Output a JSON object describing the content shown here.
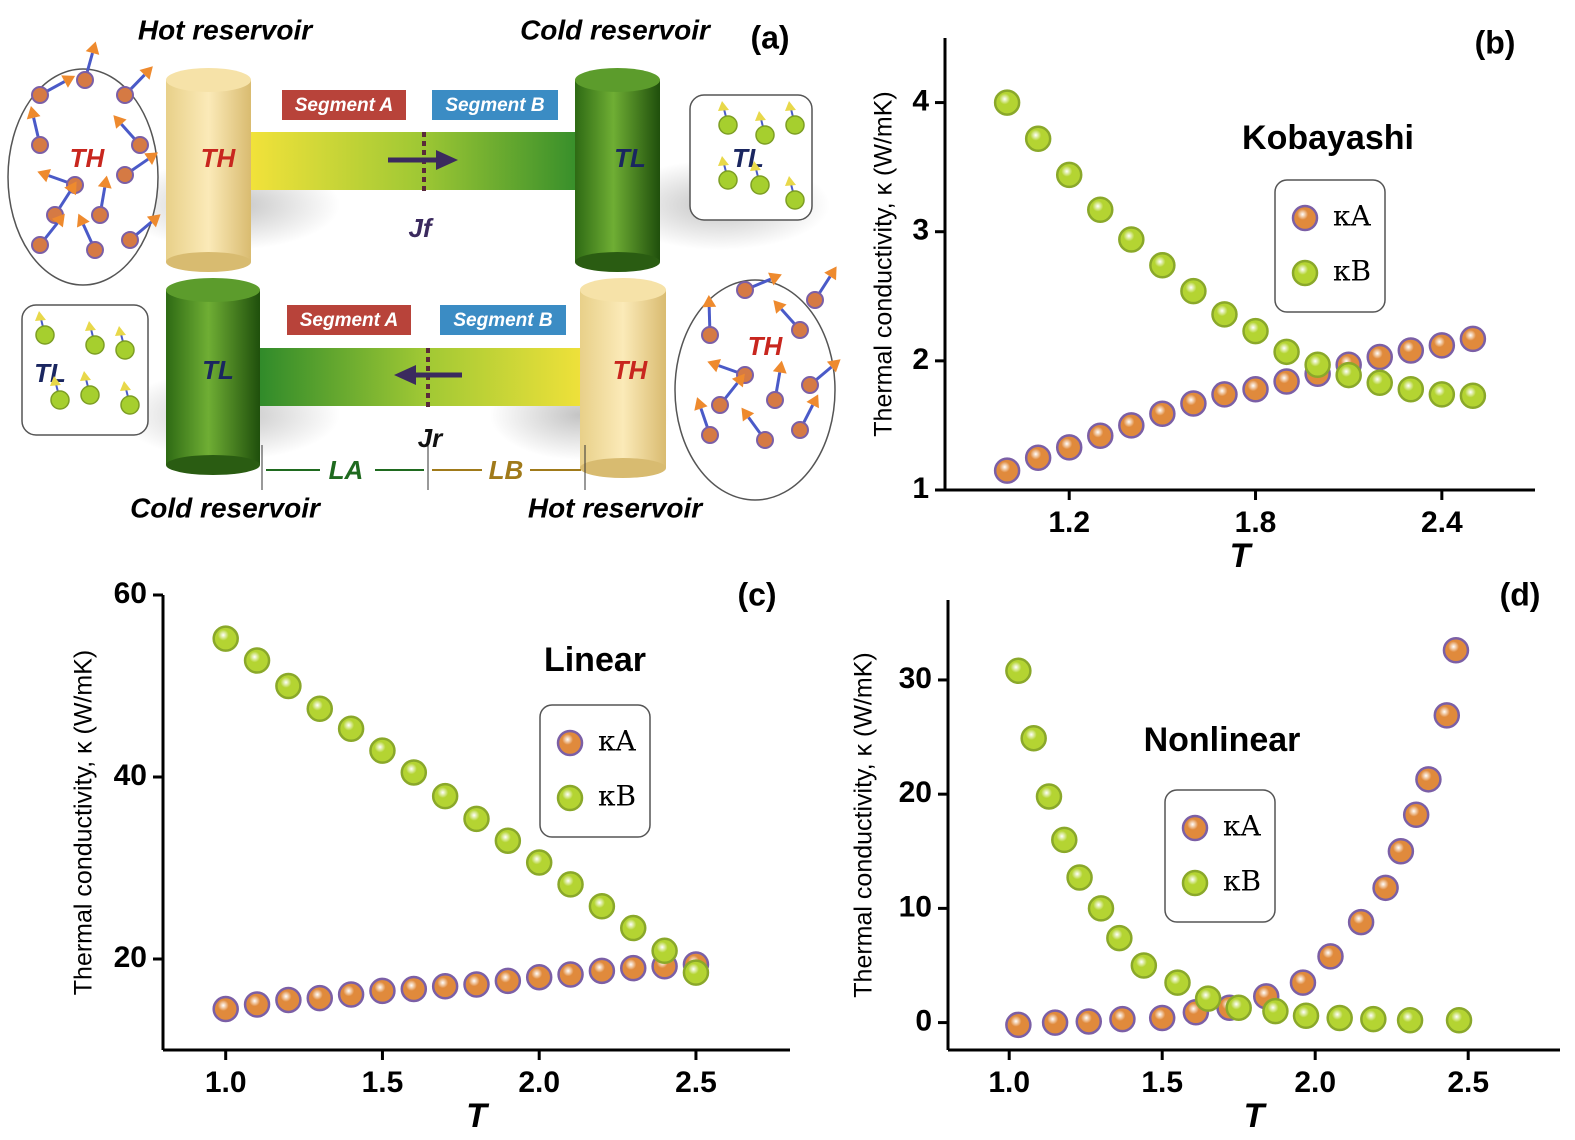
{
  "diagram": {
    "panel_label": "(a)",
    "top": {
      "left_reservoir": "Hot reservoir",
      "right_reservoir": "Cold reservoir",
      "segment_a": "Segment A",
      "segment_b": "Segment B",
      "left_gas_temp": "TH",
      "left_temp": "TH",
      "right_temp": "TL",
      "right_gas_temp": "TL",
      "flux": "Jf"
    },
    "bottom": {
      "left_reservoir": "Cold reservoir",
      "right_reservoir": "Hot reservoir",
      "segment_a": "Segment A",
      "segment_b": "Segment B",
      "left_gas_temp": "TL",
      "left_temp": "TL",
      "right_temp": "TH",
      "right_gas_temp": "TH",
      "flux": "Jr",
      "length_a": "LA",
      "length_b": "LB"
    }
  },
  "chart_data": [
    {
      "type": "scatter",
      "panel_label": "(b)",
      "annotation": "Kobayashi",
      "x_label": "T",
      "y_label": "Thermal conductivity, κ (W/mK)",
      "x": [
        1.0,
        1.1,
        1.2,
        1.3,
        1.4,
        1.5,
        1.6,
        1.7,
        1.8,
        1.9,
        2.0,
        2.1,
        2.2,
        2.3,
        2.4,
        2.5
      ],
      "series": [
        {
          "name": "κA",
          "color": "#e08a3c",
          "edgecolor": "#7b5fa6",
          "values": [
            1.15,
            1.25,
            1.33,
            1.42,
            1.5,
            1.59,
            1.67,
            1.74,
            1.78,
            1.84,
            1.9,
            1.97,
            2.03,
            2.08,
            2.12,
            2.17
          ]
        },
        {
          "name": "κB",
          "color": "#b4d432",
          "edgecolor": "#8aa82a",
          "values": [
            4.0,
            3.72,
            3.44,
            3.17,
            2.94,
            2.74,
            2.54,
            2.36,
            2.23,
            2.07,
            1.97,
            1.89,
            1.83,
            1.78,
            1.74,
            1.73
          ]
        }
      ],
      "xlim": [
        0.8,
        2.7
      ],
      "ylim": [
        1,
        4.5
      ],
      "xticks": [
        1.2,
        1.8,
        2.4
      ],
      "yticks": [
        1,
        2,
        3,
        4
      ]
    },
    {
      "type": "scatter",
      "panel_label": "(c)",
      "annotation": "Linear",
      "x_label": "T",
      "y_label": "Thermal conductivity, κ (W/mK)",
      "x": [
        1.0,
        1.1,
        1.2,
        1.3,
        1.4,
        1.5,
        1.6,
        1.7,
        1.8,
        1.9,
        2.0,
        2.1,
        2.2,
        2.3,
        2.4,
        2.5
      ],
      "series": [
        {
          "name": "κA",
          "color": "#e08a3c",
          "edgecolor": "#7b5fa6",
          "values": [
            14.5,
            15.0,
            15.5,
            15.7,
            16.1,
            16.5,
            16.7,
            17.0,
            17.2,
            17.6,
            18.0,
            18.3,
            18.7,
            19.0,
            19.2,
            19.4
          ]
        },
        {
          "name": "κB",
          "color": "#b4d432",
          "edgecolor": "#8aa82a",
          "values": [
            55.2,
            52.8,
            50.0,
            47.5,
            45.3,
            42.9,
            40.5,
            37.9,
            35.4,
            33.0,
            30.6,
            28.2,
            25.8,
            23.4,
            20.9,
            18.5
          ]
        }
      ],
      "xlim": [
        0.8,
        2.8
      ],
      "ylim": [
        10,
        60
      ],
      "xticks": [
        {
          "value": 1,
          "label": "1.0"
        },
        1.5,
        {
          "value": 2,
          "label": "2.0"
        },
        2.5
      ],
      "yticks": [
        20,
        40,
        60
      ]
    },
    {
      "type": "scatter",
      "panel_label": "(d)",
      "annotation": "Nonlinear",
      "x_label": "T",
      "y_label": "Thermal conductivity, κ (W/mK)",
      "series": [
        {
          "name": "κA",
          "color": "#e08a3c",
          "edgecolor": "#7b5fa6",
          "x": [
            1.03,
            1.15,
            1.26,
            1.37,
            1.5,
            1.61,
            1.72,
            1.84,
            1.96,
            2.05,
            2.15,
            2.23,
            2.28,
            2.33,
            2.37,
            2.43,
            2.46
          ],
          "values": [
            -0.2,
            0,
            0.1,
            0.3,
            0.4,
            0.9,
            1.3,
            2.3,
            3.5,
            5.8,
            8.8,
            11.8,
            15.0,
            18.2,
            21.3,
            26.9,
            32.6
          ]
        },
        {
          "name": "κB",
          "color": "#b4d432",
          "edgecolor": "#8aa82a",
          "x": [
            1.03,
            1.08,
            1.13,
            1.18,
            1.23,
            1.3,
            1.36,
            1.44,
            1.55,
            1.65,
            1.75,
            1.87,
            1.97,
            2.08,
            2.19,
            2.31,
            2.47
          ],
          "values": [
            30.8,
            24.9,
            19.8,
            16.0,
            12.7,
            10.0,
            7.4,
            5.0,
            3.5,
            2.1,
            1.3,
            1.0,
            0.6,
            0.4,
            0.3,
            0.2,
            0.2
          ]
        }
      ],
      "xlim": [
        0.8,
        2.8
      ],
      "ylim": [
        -2.4,
        37
      ],
      "xticks": [
        {
          "value": 1,
          "label": "1.0"
        },
        1.5,
        {
          "value": 2,
          "label": "2.0"
        },
        2.5
      ],
      "yticks": [
        0,
        10,
        20,
        30
      ]
    }
  ]
}
